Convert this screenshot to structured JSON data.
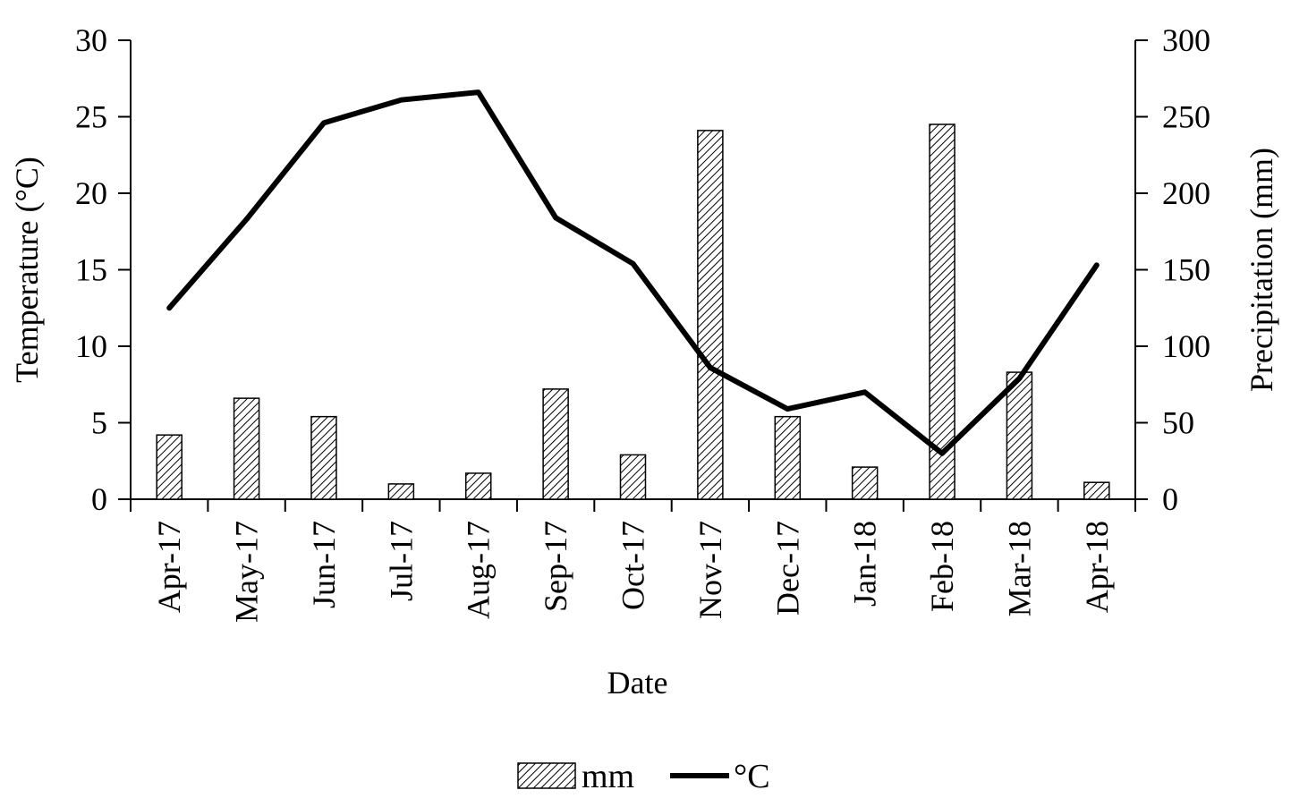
{
  "chart_data": {
    "type": "bar",
    "categories": [
      "Apr-17",
      "May-17",
      "Jun-17",
      "Jul-17",
      "Aug-17",
      "Sep-17",
      "Oct-17",
      "Nov-17",
      "Dec-17",
      "Jan-18",
      "Feb-18",
      "Mar-18",
      "Apr-18"
    ],
    "series": [
      {
        "name": "mm",
        "type": "bar",
        "axis": "right",
        "pattern": "diagonal-hatch",
        "values": [
          42,
          66,
          54,
          10,
          17,
          72,
          29,
          241,
          54,
          21,
          245,
          83,
          11
        ]
      },
      {
        "name": "°C",
        "type": "line",
        "axis": "left",
        "color": "#000000",
        "values": [
          12.5,
          18.3,
          24.6,
          26.1,
          26.6,
          18.4,
          15.4,
          8.6,
          5.9,
          7.0,
          3.0,
          7.9,
          15.3
        ]
      }
    ],
    "xlabel": "Date",
    "ylabel_left": "Temperature (°C)",
    "ylabel_right": "Precipitation (mm)",
    "ylim_left": [
      0,
      30
    ],
    "ylim_right": [
      0,
      300
    ],
    "yticks_left": [
      "0",
      "5",
      "10",
      "15",
      "20",
      "25",
      "30"
    ],
    "yticks_right": [
      "0",
      "50",
      "100",
      "150",
      "200",
      "250",
      "300"
    ],
    "grid": false,
    "legend_position": "bottom"
  }
}
